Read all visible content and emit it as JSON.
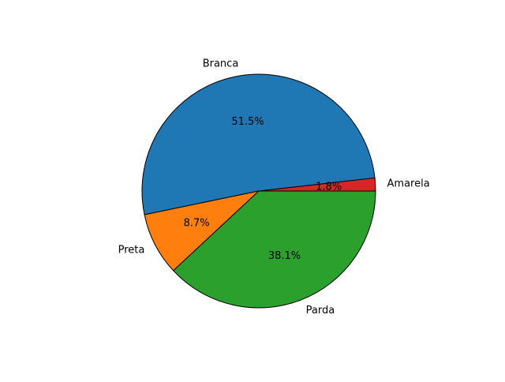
{
  "chart_data": {
    "type": "pie",
    "title": "",
    "slices": [
      {
        "label": "Amarela",
        "value": 1.8,
        "pct_label": "1.8%",
        "color": "#d62728"
      },
      {
        "label": "Branca",
        "value": 51.5,
        "pct_label": "51.5%",
        "color": "#1f77b4"
      },
      {
        "label": "Preta",
        "value": 8.7,
        "pct_label": "8.7%",
        "color": "#ff7f0e"
      },
      {
        "label": "Parda",
        "value": 38.1,
        "pct_label": "38.1%",
        "color": "#2ca02c"
      }
    ],
    "edge_color": "#000000",
    "legend": "none"
  }
}
